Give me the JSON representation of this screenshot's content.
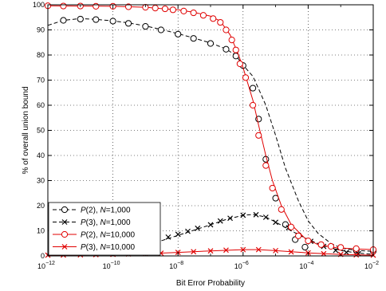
{
  "chart_data": {
    "type": "line",
    "xlabel": "Bit Error Probability",
    "ylabel": "% of overall union bound",
    "x_scale": "log",
    "xlim": [
      1e-12,
      0.01
    ],
    "ylim": [
      0,
      100
    ],
    "grid": true,
    "x_tick_exponents": [
      "-12",
      "-10",
      "-8",
      "-6",
      "-4",
      "-2"
    ],
    "x_tick_base": "10",
    "y_ticks": [
      "0",
      "10",
      "20",
      "30",
      "40",
      "50",
      "60",
      "70",
      "80",
      "90",
      "100"
    ],
    "legend_position": "bottom-left",
    "series": [
      {
        "name": "P(2),  N=1,000",
        "name_parts": {
          "p": "P",
          "order": "(2),  ",
          "n": "N",
          "value": "=1,000"
        },
        "color": "#000000",
        "line": "dashed",
        "marker": "circle",
        "points": [
          [
            1e-12,
            91.8
          ],
          [
            3e-12,
            93.8
          ],
          [
            1e-11,
            94.5
          ],
          [
            3e-11,
            94.2
          ],
          [
            1e-10,
            93.6
          ],
          [
            3e-10,
            92.8
          ],
          [
            1e-09,
            91.6
          ],
          [
            3e-09,
            90.2
          ],
          [
            1e-08,
            88.5
          ],
          [
            3e-08,
            86.8
          ],
          [
            1e-07,
            84.8
          ],
          [
            3e-07,
            82.4
          ],
          [
            6e-07,
            79.8
          ],
          [
            1e-06,
            76.0
          ],
          [
            2e-06,
            71.5
          ],
          [
            3e-06,
            66.5
          ],
          [
            5e-06,
            60.0
          ],
          [
            1e-05,
            48.0
          ],
          [
            2e-05,
            35.0
          ],
          [
            5e-05,
            22.0
          ],
          [
            0.0001,
            14.0
          ],
          [
            0.0002,
            9.0
          ],
          [
            0.0005,
            5.0
          ],
          [
            0.001,
            3.2
          ],
          [
            0.003,
            2.2
          ],
          [
            0.01,
            1.8
          ]
        ],
        "marker_points": [
          [
            3e-12,
            93.8
          ],
          [
            1e-11,
            94.3
          ],
          [
            3e-11,
            94.1
          ],
          [
            1e-10,
            93.5
          ],
          [
            3e-10,
            92.6
          ],
          [
            1e-09,
            91.4
          ],
          [
            3e-09,
            90.0
          ],
          [
            1e-08,
            88.3
          ],
          [
            3e-08,
            86.6
          ],
          [
            1e-07,
            84.6
          ],
          [
            3e-07,
            82.3
          ],
          [
            6e-07,
            79.6
          ],
          [
            1e-06,
            75.8
          ],
          [
            2e-06,
            66.8
          ],
          [
            3e-06,
            54.5
          ],
          [
            5e-06,
            38.5
          ],
          [
            1e-05,
            23.0
          ],
          [
            2e-05,
            12.5
          ],
          [
            4e-05,
            6.5
          ],
          [
            8e-05,
            3.5
          ],
          [
            0.003,
            2.3
          ],
          [
            0.01,
            1.9
          ]
        ]
      },
      {
        "name": "P(3),  N=1,000",
        "name_parts": {
          "p": "P",
          "order": "(3),  ",
          "n": "N",
          "value": "=1,000"
        },
        "color": "#000000",
        "line": "dashed",
        "marker": "x",
        "points": [
          [
            1e-12,
            0.8
          ],
          [
            1e-11,
            1.3
          ],
          [
            1e-10,
            2.2
          ],
          [
            1e-09,
            4.0
          ],
          [
            3e-09,
            6.0
          ],
          [
            1e-08,
            8.2
          ],
          [
            3e-08,
            10.2
          ],
          [
            1e-07,
            12.4
          ],
          [
            3e-07,
            14.5
          ],
          [
            1e-06,
            16.2
          ],
          [
            2e-06,
            16.5
          ],
          [
            5e-06,
            15.5
          ],
          [
            1e-05,
            13.5
          ],
          [
            3e-05,
            10.0
          ],
          [
            0.0001,
            6.5
          ],
          [
            0.0003,
            4.0
          ],
          [
            0.001,
            2.2
          ],
          [
            0.003,
            1.2
          ],
          [
            0.01,
            0.6
          ]
        ],
        "marker_points": [
          [
            5e-09,
            7.5
          ],
          [
            1e-08,
            8.6
          ],
          [
            2e-08,
            9.8
          ],
          [
            4e-08,
            11.0
          ],
          [
            1e-07,
            12.4
          ],
          [
            2e-07,
            13.9
          ],
          [
            4e-07,
            15.0
          ],
          [
            1e-06,
            16.2
          ],
          [
            2.5e-06,
            16.4
          ],
          [
            5e-06,
            15.4
          ],
          [
            1e-05,
            13.4
          ],
          [
            2.5e-05,
            11.2
          ],
          [
            5e-05,
            8.2
          ],
          [
            0.00012,
            5.8
          ],
          [
            0.0003,
            3.8
          ],
          [
            0.0007,
            2.2
          ],
          [
            0.0015,
            1.4
          ],
          [
            0.0035,
            0.9
          ]
        ]
      },
      {
        "name": "P(2),  N=10,000",
        "name_parts": {
          "p": "P",
          "order": "(2),  ",
          "n": "N",
          "value": "=10,000"
        },
        "color": "#e00000",
        "line": "solid",
        "marker": "circle",
        "points": [
          [
            1e-12,
            99.6
          ],
          [
            1e-11,
            99.5
          ],
          [
            1e-10,
            99.4
          ],
          [
            1e-09,
            99.0
          ],
          [
            3e-09,
            98.5
          ],
          [
            1e-08,
            98.0
          ],
          [
            3e-08,
            97.0
          ],
          [
            1e-07,
            95.5
          ],
          [
            2e-07,
            93.5
          ],
          [
            4e-07,
            88.0
          ],
          [
            7e-07,
            80.5
          ],
          [
            1e-06,
            75.0
          ],
          [
            2e-06,
            62.0
          ],
          [
            3e-06,
            52.0
          ],
          [
            5e-06,
            40.0
          ],
          [
            8e-06,
            30.0
          ],
          [
            1.5e-05,
            20.0
          ],
          [
            3e-05,
            12.5
          ],
          [
            8e-05,
            7.0
          ],
          [
            0.0002,
            4.5
          ],
          [
            0.0007,
            3.3
          ],
          [
            0.003,
            2.8
          ],
          [
            0.01,
            2.5
          ]
        ],
        "marker_points": [
          [
            1e-12,
            99.6
          ],
          [
            3e-12,
            99.5
          ],
          [
            1e-11,
            99.5
          ],
          [
            3e-11,
            99.4
          ],
          [
            1e-10,
            99.4
          ],
          [
            3e-10,
            99.2
          ],
          [
            1e-09,
            99.0
          ],
          [
            2e-09,
            98.7
          ],
          [
            4e-09,
            98.4
          ],
          [
            7e-09,
            98.0
          ],
          [
            1.5e-08,
            97.5
          ],
          [
            3e-08,
            96.8
          ],
          [
            6e-08,
            95.8
          ],
          [
            1.2e-07,
            94.5
          ],
          [
            2e-07,
            93.0
          ],
          [
            3e-07,
            90.0
          ],
          [
            4.5e-07,
            86.0
          ],
          [
            6e-07,
            82.0
          ],
          [
            8e-07,
            76.5
          ],
          [
            1.2e-06,
            71.0
          ],
          [
            2e-06,
            60.0
          ],
          [
            3e-06,
            48.0
          ],
          [
            5e-06,
            36.0
          ],
          [
            8e-06,
            27.0
          ],
          [
            1.5e-05,
            18.5
          ],
          [
            3e-05,
            11.5
          ],
          [
            5e-05,
            8.0
          ],
          [
            0.0001,
            6.0
          ],
          [
            0.00025,
            4.5
          ],
          [
            0.0005,
            3.8
          ],
          [
            0.001,
            3.4
          ],
          [
            0.003,
            2.9
          ],
          [
            0.01,
            2.5
          ]
        ]
      },
      {
        "name": "P(3),  N=10,000",
        "name_parts": {
          "p": "P",
          "order": "(3),  ",
          "n": "N",
          "value": "=10,000"
        },
        "color": "#e00000",
        "line": "solid",
        "marker": "x",
        "points": [
          [
            1e-12,
            0.3
          ],
          [
            1e-11,
            0.4
          ],
          [
            1e-10,
            0.6
          ],
          [
            1e-09,
            0.9
          ],
          [
            1e-08,
            1.4
          ],
          [
            1e-07,
            2.0
          ],
          [
            1e-06,
            2.5
          ],
          [
            3e-06,
            2.5
          ],
          [
            1e-05,
            2.1
          ],
          [
            0.0001,
            1.2
          ],
          [
            0.001,
            0.6
          ],
          [
            0.01,
            0.3
          ]
        ],
        "marker_points": [
          [
            1e-12,
            0.3
          ],
          [
            3e-12,
            0.35
          ],
          [
            1e-11,
            0.4
          ],
          [
            3e-11,
            0.5
          ],
          [
            1e-10,
            0.6
          ],
          [
            3e-10,
            0.75
          ],
          [
            1e-09,
            0.9
          ],
          [
            3e-09,
            1.1
          ],
          [
            1e-08,
            1.4
          ],
          [
            3e-08,
            1.7
          ],
          [
            1e-07,
            2.0
          ],
          [
            3e-07,
            2.3
          ],
          [
            1e-06,
            2.5
          ],
          [
            3e-06,
            2.5
          ],
          [
            1e-05,
            2.1
          ],
          [
            3e-05,
            1.6
          ],
          [
            0.0001,
            1.2
          ],
          [
            0.0003,
            0.9
          ],
          [
            0.001,
            0.6
          ],
          [
            0.003,
            0.4
          ],
          [
            0.01,
            0.3
          ]
        ]
      }
    ]
  }
}
